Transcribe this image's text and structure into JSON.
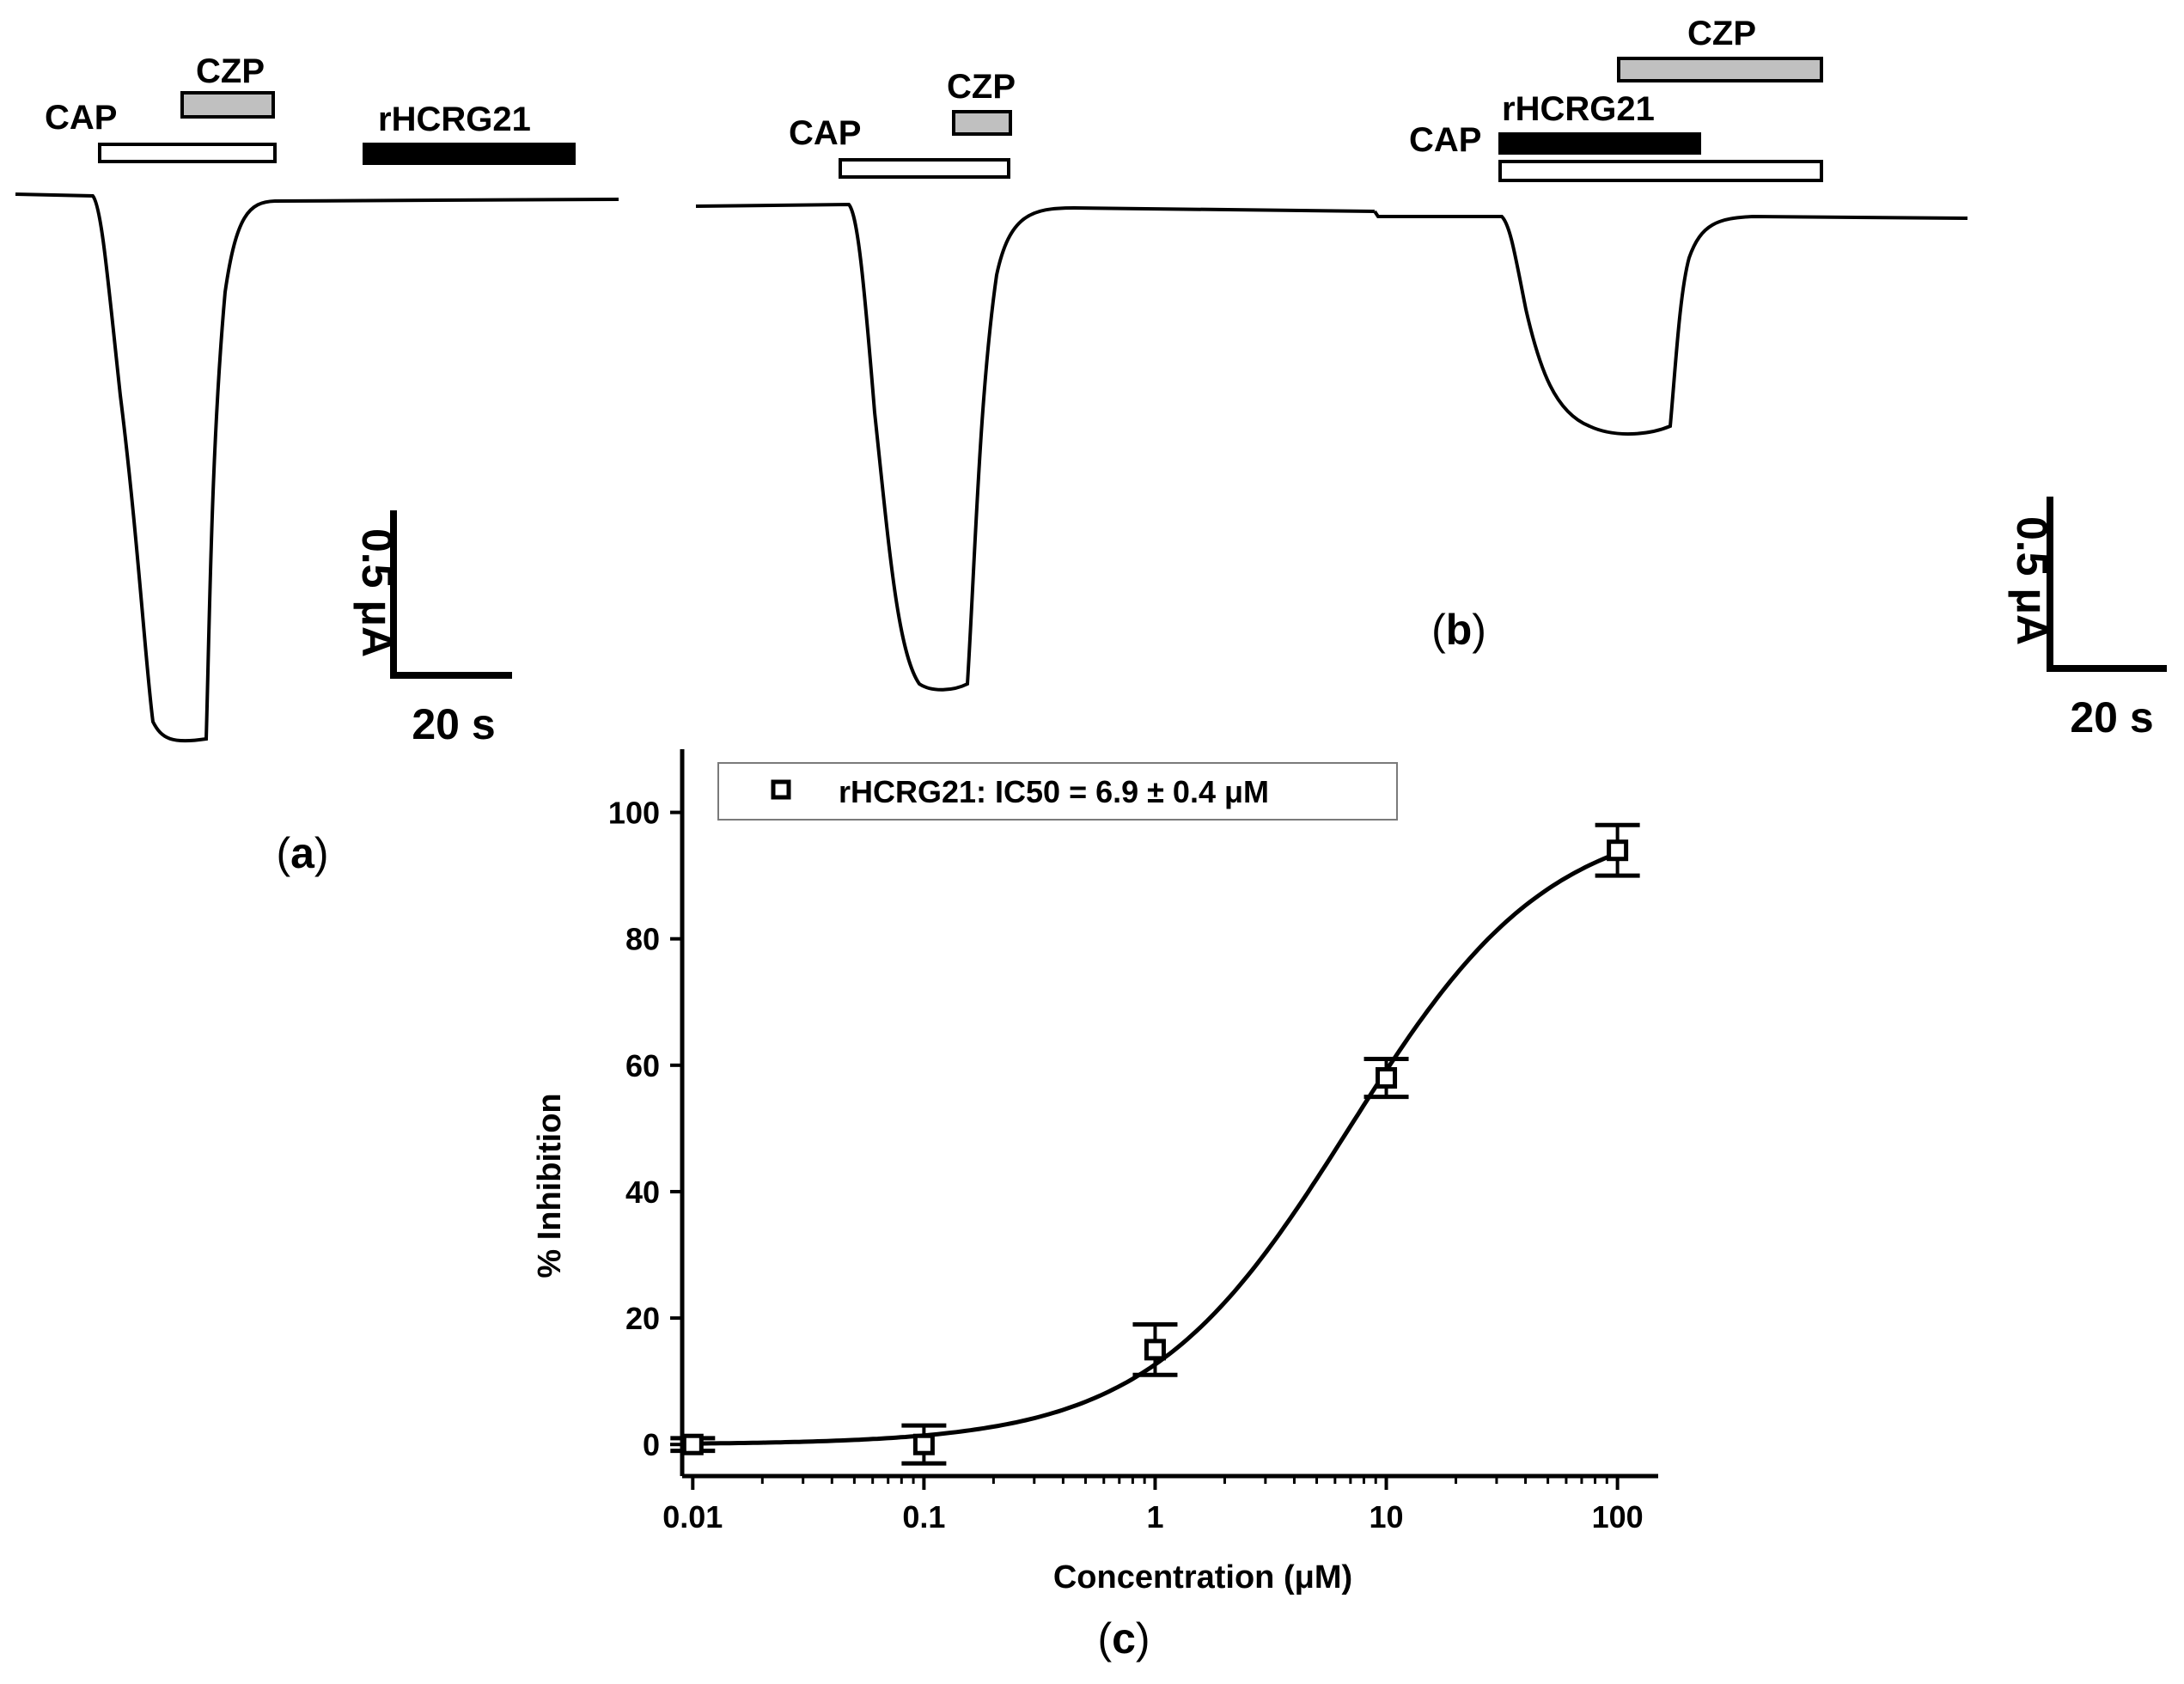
{
  "panel_a": {
    "labels": {
      "cap": "CAP",
      "czp": "CZP",
      "toxin": "rHCRG21"
    },
    "scalebar": {
      "current": "0.5 μA",
      "time": "20 s"
    },
    "caption": {
      "open": "(",
      "letter": "a",
      "close": ")"
    }
  },
  "panel_b": {
    "labels": {
      "cap": "CAP",
      "czp": "CZP",
      "toxin": "rHCRG21"
    },
    "scalebar": {
      "current": "0.5 μA",
      "time": "20 s"
    },
    "caption": {
      "open": "(",
      "letter": "b",
      "close": ")"
    }
  },
  "panel_c": {
    "caption": {
      "open": "(",
      "letter": "c",
      "close": ")"
    }
  },
  "colors": {
    "ink": "#000000",
    "czp_bar": "#c0c0c0",
    "cap_bar": "#ffffff",
    "toxin_bar": "#000000"
  },
  "chart_data": {
    "type": "scatter",
    "xlabel": "Concentration (μM)",
    "ylabel": "% Inhibition",
    "xscale": "log",
    "xlim": [
      0.009,
      150
    ],
    "ylim": [
      -5,
      110
    ],
    "x_ticks": [
      0.01,
      0.1,
      1,
      10,
      100
    ],
    "x_tick_labels": [
      "0.01",
      "0.1",
      "1",
      "10",
      "100"
    ],
    "y_ticks": [
      0,
      20,
      40,
      60,
      80,
      100
    ],
    "y_tick_labels": [
      "0",
      "20",
      "40",
      "60",
      "80",
      "100"
    ],
    "legend": "rHCRG21: IC50 = 6.9 ± 0.4 μM",
    "legend_position": "top-left",
    "series": [
      {
        "name": "rHCRG21",
        "points": [
          {
            "x": 0.01,
            "y": 0,
            "err": 1
          },
          {
            "x": 0.1,
            "y": 0,
            "err": 3
          },
          {
            "x": 1,
            "y": 15,
            "err": 4
          },
          {
            "x": 10,
            "y": 58,
            "err": 3
          },
          {
            "x": 100,
            "y": 94,
            "err": 4
          }
        ]
      }
    ],
    "fit": {
      "model": "hill",
      "ic50": 6.9,
      "hill": 1.0,
      "min": 0,
      "max": 100
    }
  }
}
